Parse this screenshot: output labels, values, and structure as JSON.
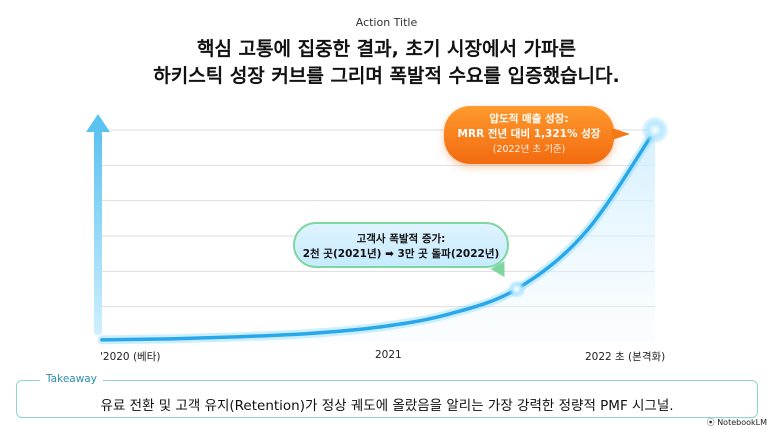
{
  "action_title": "Action Title",
  "headline": {
    "line1": "핵심 고통에 집중한 결과, 초기 시장에서 가파른",
    "line2": "하키스틱 성장 커브를 그리며 폭발적 수요를 입증했습니다."
  },
  "chart_data": {
    "type": "line",
    "title": "",
    "xlabel": "",
    "ylabel": "",
    "x_ticks": [
      "'2020 (베타)",
      "2021",
      "2022 초 (본격화)"
    ],
    "x": [
      0,
      0.25,
      0.5,
      0.75,
      1.0,
      1.25,
      1.5,
      1.75,
      2.0
    ],
    "series": [
      {
        "values": [
          1,
          1.5,
          2.5,
          4,
          7,
          13,
          25,
          52,
          100
        ]
      }
    ],
    "y_axis_ticks_shown": false,
    "grid": "horizontal",
    "annotations": [
      {
        "id": "customer-growth",
        "line1": "고객사 폭발적 증가:",
        "line2": "2천 곳(2021년) ➡ 3만 곳 돌파(2022년)"
      },
      {
        "id": "revenue-growth",
        "line1": "압도적 매출 성장:",
        "line2": "MRR 전년 대비 1,321% 성장",
        "line3": "(2022년 초 기준)"
      }
    ],
    "colors": {
      "curve": "#2aa7e8",
      "curve_glow": "#8fdcff",
      "arrow": "#5cc3f0",
      "highlight_bubble": "#f47a18",
      "info_bubble_border": "#7fd7a0"
    }
  },
  "takeaway": {
    "label": "Takeaway",
    "text": "유료 전환 및 고객 유지(Retention)가 정상 궤도에 올랐음을 알리는 가장 강력한 정량적 PMF 시그널."
  },
  "brand": "⦿ NotebookLM"
}
